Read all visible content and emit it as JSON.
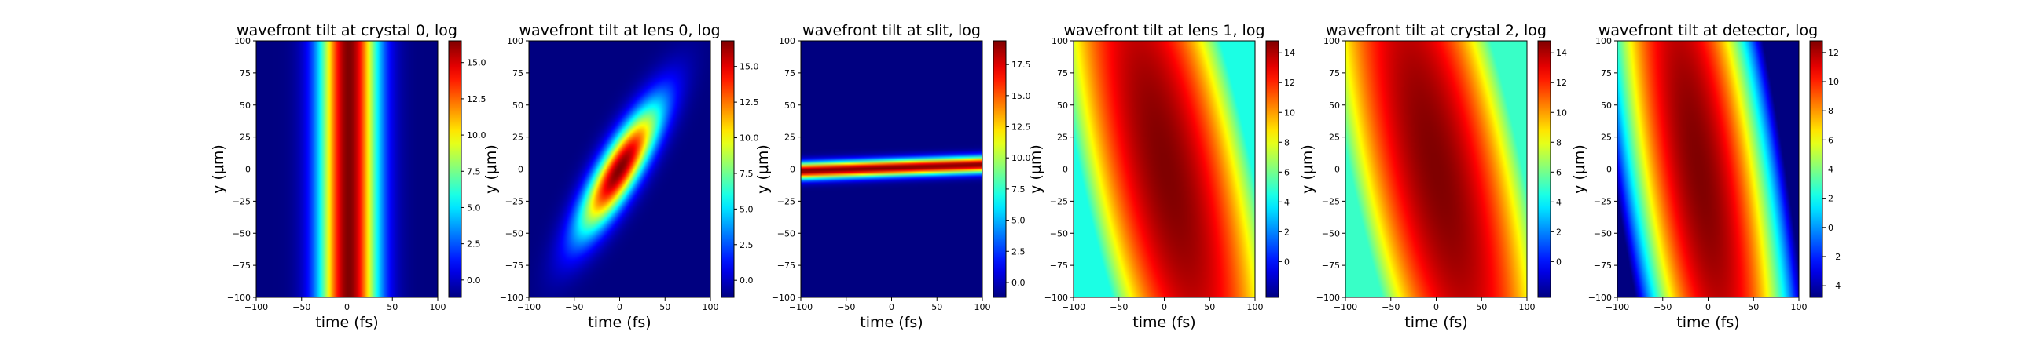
{
  "figure": {
    "background": "#ffffff",
    "colormap": "jet"
  },
  "chart_data": [
    {
      "type": "heatmap",
      "title": "wavefront tilt at crystal 0, log",
      "xlabel": "time (fs)",
      "ylabel": "y (μm)",
      "xlim": [
        -100,
        100
      ],
      "ylim": [
        -100,
        100
      ],
      "xticks": [
        "−100",
        "−50",
        "0",
        "50",
        "100"
      ],
      "yticks": [
        "100",
        "75",
        "50",
        "25",
        "0",
        "−25",
        "−50",
        "−75",
        "−100"
      ],
      "colorbar": {
        "range": [
          -1.2,
          16.5
        ],
        "ticks": [
          "0.0",
          "2.5",
          "5.0",
          "7.5",
          "10.0",
          "12.5",
          "15.0"
        ]
      },
      "pattern": {
        "kind": "band",
        "t0": 2,
        "slope": 0,
        "width_fs": 45,
        "width_um": 0,
        "peak": 16.5,
        "floor": -1.2,
        "shape": "gaussian"
      }
    },
    {
      "type": "heatmap",
      "title": "wavefront tilt at lens 0, log",
      "xlabel": "time (fs)",
      "ylabel": "y (μm)",
      "xlim": [
        -100,
        100
      ],
      "ylim": [
        -100,
        100
      ],
      "xticks": [
        "−100",
        "−50",
        "0",
        "50",
        "100"
      ],
      "yticks": [
        "100",
        "75",
        "50",
        "25",
        "0",
        "−25",
        "−50",
        "−75",
        "−100"
      ],
      "colorbar": {
        "range": [
          -1.2,
          16.8
        ],
        "ticks": [
          "0.0",
          "2.5",
          "5.0",
          "7.5",
          "10.0",
          "12.5",
          "15.0"
        ]
      },
      "pattern": {
        "kind": "band",
        "t0": 0,
        "slope": 0.75,
        "width_fs": 34,
        "width_um": 70,
        "peak": 16.8,
        "floor": -1.2,
        "shape": "gaussian"
      }
    },
    {
      "type": "heatmap",
      "title": "wavefront tilt at slit, log",
      "xlabel": "time (fs)",
      "ylabel": "y (μm)",
      "xlim": [
        -100,
        100
      ],
      "ylim": [
        -100,
        100
      ],
      "xticks": [
        "−100",
        "−50",
        "0",
        "50",
        "100"
      ],
      "yticks": [
        "100",
        "75",
        "50",
        "25",
        "0",
        "−25",
        "−50",
        "−75",
        "−100"
      ],
      "colorbar": {
        "range": [
          -1.2,
          19.4
        ],
        "ticks": [
          "0.0",
          "2.5",
          "5.0",
          "7.5",
          "10.0",
          "12.5",
          "15.0",
          "17.5"
        ]
      },
      "pattern": {
        "kind": "line",
        "y0": 1,
        "yslope": 0.025,
        "width_um": 4.5,
        "peak": 19.4,
        "floor": -1.2
      }
    },
    {
      "type": "heatmap",
      "title": "wavefront tilt at lens 1, log",
      "xlabel": "time (fs)",
      "ylabel": "y (μm)",
      "xlim": [
        -100,
        100
      ],
      "ylim": [
        -100,
        100
      ],
      "xticks": [
        "−100",
        "−50",
        "0",
        "50",
        "100"
      ],
      "yticks": [
        "100",
        "75",
        "50",
        "25",
        "0",
        "−25",
        "−50",
        "−75",
        "−100"
      ],
      "colorbar": {
        "range": [
          -2.4,
          14.8
        ],
        "ticks": [
          "0",
          "2",
          "4",
          "6",
          "8",
          "10",
          "12",
          "14"
        ]
      },
      "pattern": {
        "kind": "band",
        "t0": 2,
        "slope": -0.3,
        "width_fs": 95,
        "width_um": 300,
        "peak": 14.8,
        "floor": 4.5,
        "shape": "quadratic"
      }
    },
    {
      "type": "heatmap",
      "title": "wavefront tilt at crystal 2, log",
      "xlabel": "time (fs)",
      "ylabel": "y (μm)",
      "xlim": [
        -100,
        100
      ],
      "ylim": [
        -100,
        100
      ],
      "xticks": [
        "−100",
        "−50",
        "0",
        "50",
        "100"
      ],
      "yticks": [
        "100",
        "75",
        "50",
        "25",
        "0",
        "−25",
        "−50",
        "−75",
        "−100"
      ],
      "colorbar": {
        "range": [
          -2.4,
          14.8
        ],
        "ticks": [
          "0",
          "2",
          "4",
          "6",
          "8",
          "10",
          "12",
          "14"
        ]
      },
      "pattern": {
        "kind": "band",
        "t0": 0,
        "slope": -0.3,
        "width_fs": 95,
        "width_um": 300,
        "peak": 14.8,
        "floor": 5.0,
        "shape": "quadratic"
      }
    },
    {
      "type": "heatmap",
      "title": "wavefront tilt at detector, log",
      "xlabel": "time (fs)",
      "ylabel": "y (μm)",
      "xlim": [
        -100,
        100
      ],
      "ylim": [
        -100,
        100
      ],
      "xticks": [
        "−100",
        "−50",
        "0",
        "50",
        "100"
      ],
      "yticks": [
        "100",
        "75",
        "50",
        "25",
        "0",
        "−25",
        "−50",
        "−75",
        "−100"
      ],
      "colorbar": {
        "range": [
          -4.8,
          12.8
        ],
        "ticks": [
          "−4",
          "−2",
          "0",
          "2",
          "4",
          "6",
          "8",
          "10",
          "12"
        ]
      },
      "pattern": {
        "kind": "band",
        "t0": -10,
        "slope": -0.22,
        "width_fs": 95,
        "width_um": 400,
        "peak": 12.8,
        "floor": -4.8,
        "shape": "quadratic"
      }
    }
  ]
}
